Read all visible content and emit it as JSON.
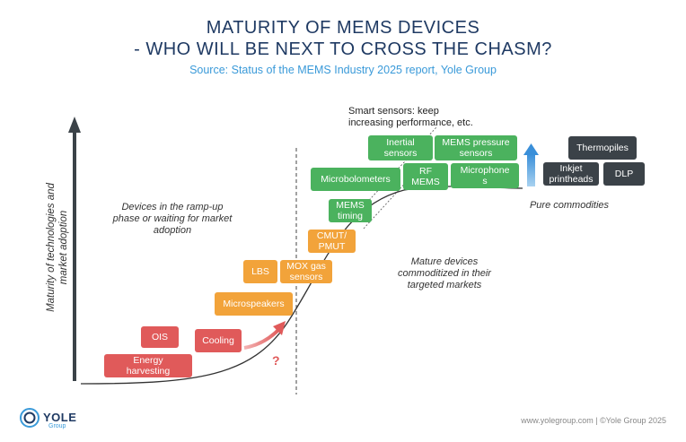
{
  "header": {
    "title_line1": "MATURITY OF MEMS DEVICES",
    "title_line2": "- WHO WILL BE NEXT TO CROSS THE CHASM?",
    "source": "Source: Status of the MEMS Industry 2025 report, Yole Group"
  },
  "axis": {
    "y_label_line1": "Maturity of technologies and",
    "y_label_line2": "market adoption"
  },
  "annotations": {
    "ramp_up_line1": "Devices in the ramp-up",
    "ramp_up_line2": "phase or waiting for market",
    "ramp_up_line3": "adoption",
    "mature_line1": "Mature devices",
    "mature_line2": "commoditized in their",
    "mature_line3": "targeted markets",
    "commodities": "Pure commodities",
    "smart_line1": "Smart sensors: keep",
    "smart_line2": "increasing performance, etc.",
    "question_mark": "?"
  },
  "devices": {
    "energy_harvesting_1": "Energy",
    "energy_harvesting_2": "harvesting",
    "ois": "OIS",
    "cooling": "Cooling",
    "microspeakers": "Microspeakers",
    "lbs": "LBS",
    "mox_1": "MOX gas",
    "mox_2": "sensors",
    "cmut_1": "CMUT/",
    "cmut_2": "PMUT",
    "mems_timing_1": "MEMS",
    "mems_timing_2": "timing",
    "microbolometers": "Microbolometers",
    "rf_mems_1": "RF",
    "rf_mems_2": "MEMS",
    "inertial_1": "Inertial",
    "inertial_2": "sensors",
    "pressure_1": "MEMS pressure",
    "pressure_2": "sensors",
    "microphones_1": "Microphone",
    "microphones_2": "s",
    "thermopiles": "Thermopiles",
    "inkjet_1": "Inkjet",
    "inkjet_2": "printheads",
    "dlp": "DLP"
  },
  "footer": {
    "logo": "YOLE",
    "logo_sub": "Group",
    "credit": "www.yolegroup.com | ©Yole Group 2025"
  },
  "colors": {
    "emerging": "#e05a5a",
    "ramp_up": "#f2a33a",
    "mature": "#4bb25e",
    "commodity": "#3b4248",
    "title": "#1f3a63",
    "accent": "#3a9ad9"
  }
}
